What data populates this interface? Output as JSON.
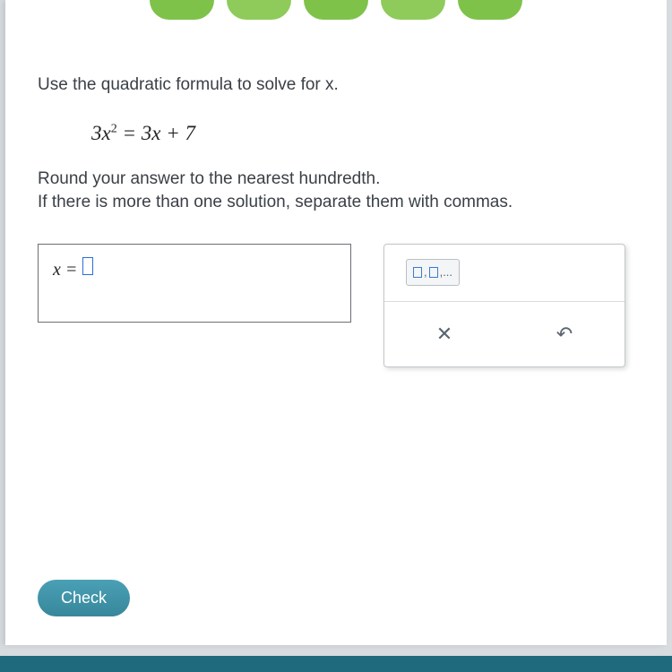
{
  "nav": {
    "bubble_colors": [
      "#7fc24a",
      "#8ecb5a",
      "#7fc24a",
      "#8ecb5a",
      "#7fc24a"
    ]
  },
  "problem": {
    "instruction": "Use the quadratic formula to solve for x.",
    "equation_html": "3x² = 3x + 7",
    "hint_line1": "Round your answer to the nearest hundredth.",
    "hint_line2": "If there is more than one solution, separate them with commas."
  },
  "answer": {
    "prefix": "x ="
  },
  "tools": {
    "csv_label": ",...",
    "clear_glyph": "✕",
    "undo_glyph": "↶"
  },
  "actions": {
    "check_label": "Check"
  },
  "style": {
    "page_bg": "#ffffff",
    "text_color": "#3b4046",
    "accent_blue": "#2a6fd6",
    "check_bg": "#3a8a9e",
    "footer_bg": "#1f6a7c",
    "body_fontsize": 19,
    "equation_fontsize": 23
  }
}
